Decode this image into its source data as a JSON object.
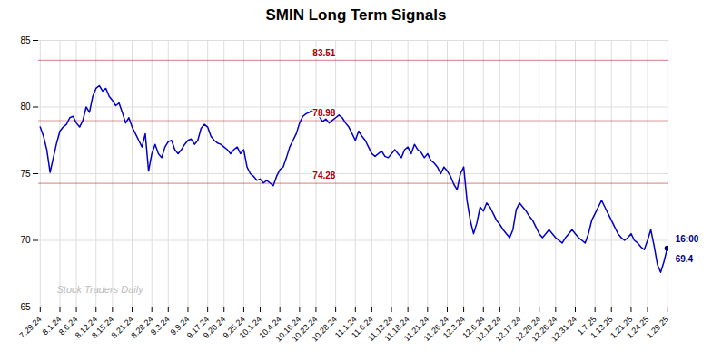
{
  "chart_data": {
    "type": "line",
    "title": "SMIN Long Term Signals",
    "categories": [
      "7.29.24",
      null,
      null,
      null,
      null,
      null,
      "8.1.24",
      null,
      null,
      null,
      null,
      "8.6.24",
      null,
      null,
      null,
      null,
      null,
      "8.12.24",
      null,
      null,
      null,
      null,
      "8.15.24",
      null,
      null,
      null,
      null,
      null,
      "8.21.24",
      null,
      null,
      null,
      null,
      null,
      "8.28.24",
      null,
      null,
      null,
      null,
      "9.3.24",
      null,
      null,
      null,
      null,
      null,
      "9.9.24",
      null,
      null,
      null,
      null,
      null,
      "9.17.24",
      null,
      null,
      null,
      null,
      "9.20.24",
      null,
      null,
      null,
      null,
      null,
      "9.25.24",
      null,
      null,
      null,
      null,
      "10.1.24",
      null,
      null,
      null,
      null,
      null,
      "10.4.24",
      null,
      null,
      null,
      null,
      null,
      "10.16.24",
      null,
      null,
      null,
      null,
      "10.23.24",
      null,
      null,
      null,
      null,
      null,
      "10.28.24",
      null,
      null,
      null,
      null,
      null,
      "11.1.24",
      null,
      null,
      null,
      null,
      "11.6.24",
      null,
      null,
      null,
      null,
      null,
      "11.13.24",
      null,
      null,
      null,
      null,
      "11.18.24",
      null,
      null,
      null,
      null,
      null,
      "11.21.24",
      null,
      null,
      null,
      null,
      null,
      "11.26.24",
      null,
      null,
      null,
      null,
      "12.3.24",
      null,
      null,
      null,
      null,
      null,
      "12.6.24",
      null,
      null,
      null,
      null,
      "12.12.24",
      null,
      null,
      null,
      null,
      null,
      "12.17.24",
      null,
      null,
      null,
      null,
      null,
      "12.20.24",
      null,
      null,
      null,
      null,
      "12.26.24",
      null,
      null,
      null,
      null,
      null,
      "12.31.24",
      null,
      null,
      null,
      null,
      null,
      "1.7.25",
      null,
      null,
      null,
      null,
      "1.13.25",
      null,
      null,
      null,
      null,
      null,
      "1.21.25",
      null,
      null,
      null,
      null,
      "1.24.25",
      null,
      null,
      null,
      null,
      null,
      "1.29.25"
    ],
    "values": [
      78.5,
      77.8,
      76.8,
      75.1,
      76.2,
      77.3,
      78.2,
      78.5,
      78.7,
      79.2,
      79.3,
      78.8,
      78.5,
      79.0,
      80.0,
      79.6,
      80.8,
      81.4,
      81.6,
      81.2,
      81.4,
      80.8,
      80.5,
      80.1,
      80.3,
      79.6,
      78.8,
      79.2,
      78.5,
      78.0,
      77.5,
      77.0,
      78.0,
      75.2,
      76.5,
      77.2,
      76.5,
      76.2,
      77.0,
      77.4,
      77.5,
      76.8,
      76.5,
      76.8,
      77.2,
      77.5,
      77.6,
      77.2,
      77.5,
      78.4,
      78.7,
      78.5,
      77.8,
      77.5,
      77.3,
      77.2,
      77.0,
      76.8,
      76.5,
      76.8,
      77.0,
      76.5,
      76.8,
      75.5,
      75.0,
      74.8,
      74.5,
      74.6,
      74.3,
      74.5,
      74.3,
      74.1,
      74.8,
      75.3,
      75.5,
      76.2,
      77.0,
      77.5,
      78.0,
      78.8,
      79.3,
      79.5,
      79.6,
      79.8,
      79.5,
      79.3,
      78.9,
      79.1,
      78.8,
      79.0,
      79.2,
      79.4,
      79.2,
      78.8,
      78.5,
      78.0,
      77.5,
      78.2,
      77.8,
      77.5,
      77.0,
      76.5,
      76.3,
      76.5,
      76.7,
      76.3,
      76.2,
      76.5,
      76.8,
      76.5,
      76.2,
      76.8,
      77.0,
      76.5,
      77.2,
      76.8,
      76.6,
      76.2,
      76.5,
      76.0,
      75.8,
      75.5,
      75.0,
      75.5,
      75.2,
      74.8,
      74.2,
      73.8,
      75.0,
      75.5,
      73.0,
      71.5,
      70.5,
      71.3,
      72.5,
      72.2,
      72.8,
      72.5,
      72.0,
      71.5,
      71.2,
      70.8,
      70.5,
      70.2,
      70.8,
      72.3,
      72.8,
      72.5,
      72.2,
      71.8,
      71.5,
      71.0,
      70.5,
      70.2,
      70.5,
      70.8,
      70.5,
      70.2,
      70.0,
      69.8,
      70.2,
      70.5,
      70.8,
      70.5,
      70.2,
      70.0,
      69.8,
      70.5,
      71.5,
      72.0,
      72.5,
      73.0,
      72.5,
      72.0,
      71.5,
      71.0,
      70.5,
      70.2,
      70.0,
      70.2,
      70.5,
      70.0,
      69.8,
      69.5,
      69.3,
      70.0,
      70.8,
      69.6,
      68.2,
      67.6,
      68.4,
      69.4
    ],
    "color": "#0000cc",
    "ylim": [
      65,
      85
    ],
    "yticks": [
      65,
      70,
      75,
      80,
      85
    ],
    "grid": true,
    "annotations": [
      {
        "type": "hline",
        "y": 83.51,
        "text": "83.51",
        "color": "#aa0000"
      },
      {
        "type": "hline",
        "y": 78.98,
        "text": "78.98",
        "color": "#aa0000"
      },
      {
        "type": "hline",
        "y": 74.28,
        "text": "74.28",
        "color": "#aa0000"
      },
      {
        "type": "point",
        "x": 191,
        "y": 69.4,
        "labels": [
          "16:00",
          "69.4"
        ],
        "color": "#000080"
      },
      {
        "type": "watermark",
        "text": "Stock Traders Daily",
        "color": "#bbbbbb"
      }
    ]
  }
}
